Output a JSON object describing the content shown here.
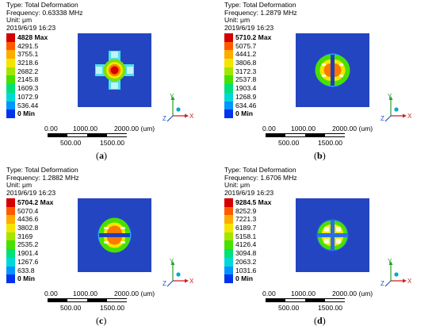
{
  "legend_colors": [
    "#d40000",
    "#ff5a00",
    "#ffab00",
    "#f2e600",
    "#a2e600",
    "#48e000",
    "#00e07a",
    "#00d8d8",
    "#0095ff",
    "#0033ee"
  ],
  "plate_color": "#2445c2",
  "panels": [
    {
      "type": "Type: Total Deformation",
      "frequency": "Frequency: 0.63338 MHz",
      "unit": "Unit: μm",
      "datetime": "2019/6/19 16:23",
      "legend": [
        "4828 Max",
        "4291.5",
        "3755.1",
        "3218.6",
        "2682.2",
        "2145.8",
        "1609.3",
        "1072.9",
        "536.44",
        "0 Min"
      ],
      "pattern": "central-peak",
      "caption": "(a)"
    },
    {
      "type": "Type: Total Deformation",
      "frequency": "Frequency: 1.2879 MHz",
      "unit": "Unit: μm",
      "datetime": "2019/6/19 16:23",
      "legend": [
        "5710.2 Max",
        "5075.7",
        "4441.2",
        "3806.8",
        "3172.3",
        "2537.8",
        "1903.4",
        "1268.9",
        "634.46",
        "0 Min"
      ],
      "pattern": "left-right-lobes",
      "caption": "(b)"
    },
    {
      "type": "Type: Total Deformation",
      "frequency": "Frequency: 1.2882 MHz",
      "unit": "Unit: μm",
      "datetime": "2019/6/19 16:23",
      "legend": [
        "5704.2 Max",
        "5070.4",
        "4436.6",
        "3802.8",
        "3169",
        "2535.2",
        "1901.4",
        "1267.6",
        "633.8",
        "0 Min"
      ],
      "pattern": "top-bottom-lobes",
      "caption": "(c)"
    },
    {
      "type": "Type: Total Deformation",
      "frequency": "Frequency: 1.6706 MHz",
      "unit": "Unit: μm",
      "datetime": "2019/6/19 16:23",
      "legend": [
        "9284.5 Max",
        "8252.9",
        "7221.3",
        "6189.7",
        "5158.1",
        "4126.4",
        "3094.8",
        "2063.2",
        "1031.6",
        "0 Min"
      ],
      "pattern": "four-quadrant",
      "caption": "(d)"
    }
  ],
  "scale_bar": {
    "top": [
      "0.00",
      "1000.00",
      "2000.00 (um)"
    ],
    "bottom": [
      "500.00",
      "1500.00"
    ]
  },
  "axes": {
    "x": "X",
    "y": "Y",
    "z": "Z"
  }
}
